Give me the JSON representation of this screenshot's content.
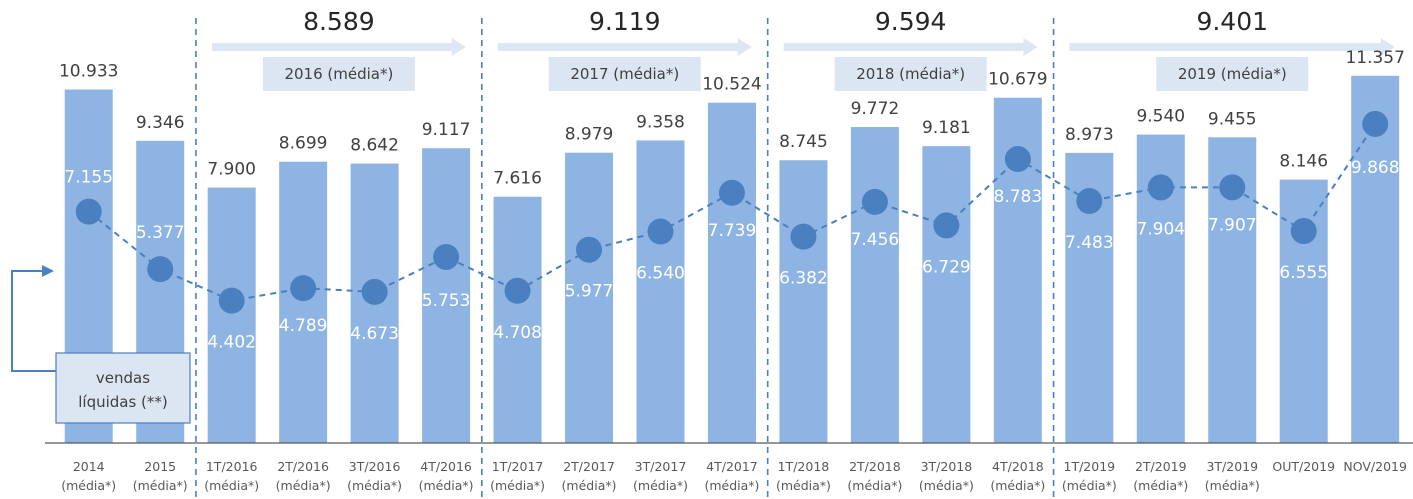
{
  "chart_data": {
    "type": "bar",
    "categories": [
      [
        "2014",
        "(média*)"
      ],
      [
        "2015",
        "(média*)"
      ],
      [
        "1T/2016",
        "(média*)"
      ],
      [
        "2T/2016",
        "(média*)"
      ],
      [
        "3T/2016",
        "(média*)"
      ],
      [
        "4T/2016",
        "(média*)"
      ],
      [
        "1T/2017",
        "(média*)"
      ],
      [
        "2T/2017",
        "(média*)"
      ],
      [
        "3T/2017",
        "(média*)"
      ],
      [
        "4T/2017",
        "(média*)"
      ],
      [
        "1T/2018",
        "(média*)"
      ],
      [
        "2T/2018",
        "(média*)"
      ],
      [
        "3T/2018",
        "(média*)"
      ],
      [
        "4T/2018",
        "(média*)"
      ],
      [
        "1T/2019",
        "(média*)"
      ],
      [
        "2T/2019",
        "(média*)"
      ],
      [
        "3T/2019",
        "(média*)"
      ],
      [
        "OUT/2019",
        ""
      ],
      [
        "NOV/2019",
        ""
      ]
    ],
    "series": [
      {
        "kind": "bar",
        "values": [
          10933,
          9346,
          7900,
          8699,
          8642,
          9117,
          7616,
          8979,
          9358,
          10524,
          8745,
          9772,
          9181,
          10679,
          8973,
          9540,
          9455,
          8146,
          11357
        ],
        "labels": [
          "10.933",
          "9.346",
          "7.900",
          "8.699",
          "8.642",
          "9.117",
          "7.616",
          "8.979",
          "9.358",
          "10.524",
          "8.745",
          "9.772",
          "9.181",
          "10.679",
          "8.973",
          "9.540",
          "9.455",
          "8.146",
          "11.357"
        ]
      },
      {
        "kind": "line",
        "values": [
          7155,
          5377,
          4402,
          4789,
          4673,
          5753,
          4708,
          5977,
          6540,
          7739,
          6382,
          7456,
          6729,
          8783,
          7483,
          7904,
          7907,
          6555,
          9868
        ],
        "labels": [
          "7.155",
          "5.377",
          "4.402",
          "4.789",
          "4.673",
          "5.753",
          "4.708",
          "5.977",
          "6.540",
          "7.739",
          "6.382",
          "7.456",
          "6.729",
          "8.783",
          "7.483",
          "7.904",
          "7.907",
          "6.555",
          "9.868"
        ]
      }
    ],
    "year_groups": [
      {
        "label": "2016 (média*)",
        "value": "8.589",
        "start": 2,
        "end": 5
      },
      {
        "label": "2017 (média*)",
        "value": "9.119",
        "start": 6,
        "end": 9
      },
      {
        "label": "2018 (média*)",
        "value": "9.594",
        "start": 10,
        "end": 13
      },
      {
        "label": "2019 (média*)",
        "value": "9.401",
        "start": 14,
        "end": 18
      }
    ],
    "annotation": [
      "vendas",
      "líquidas (**)"
    ],
    "colors": {
      "bar": "#8eb4e3",
      "line": "#4a7fc0",
      "marker": "#4a7fc0",
      "divider": "#4a7fc0",
      "arrow": "#dde7f3",
      "group_box": "#dce6f2",
      "note_border": "#4a7fc0",
      "axis": "#595959"
    },
    "ylim": [
      0,
      12000
    ],
    "grid": false,
    "legend": "none"
  }
}
